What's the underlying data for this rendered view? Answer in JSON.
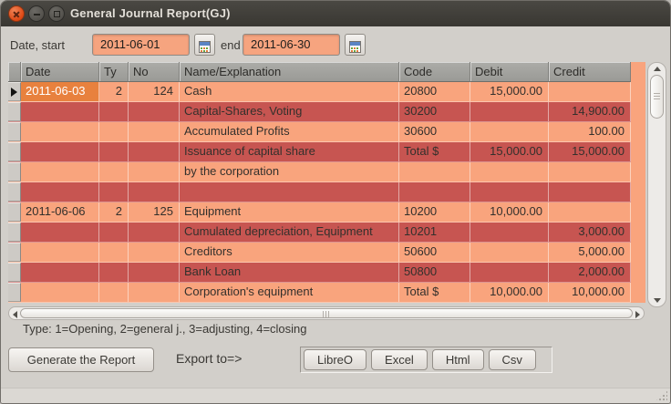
{
  "window": {
    "title": "General Journal Report(GJ)"
  },
  "colors": {
    "titlebar_bg": "#3c3b36",
    "close_button": "#dd4814",
    "entry_bg": "#f6a47f",
    "header_bg": "#acaca8",
    "row_light": "#f9a47d",
    "row_dark": "#c75551",
    "cell_selected": "#e8813e"
  },
  "filters": {
    "start_label": "Date, start",
    "start_value": "2011-06-01",
    "end_label": "end",
    "end_value": "2011-06-30"
  },
  "table": {
    "columns": [
      "Date",
      "Ty",
      "No",
      "Name/Explanation",
      "Code",
      "Debit",
      "Credit"
    ],
    "rows": [
      {
        "selected": true,
        "date": "2011-06-03",
        "ty": "2",
        "no": "124",
        "name": "Cash",
        "code": "20800",
        "debit": "15,000.00",
        "credit": ""
      },
      {
        "date": "",
        "ty": "",
        "no": "",
        "name": "Capital-Shares, Voting",
        "code": "30200",
        "debit": "",
        "credit": "14,900.00"
      },
      {
        "date": "",
        "ty": "",
        "no": "",
        "name": "Accumulated Profits",
        "code": "30600",
        "debit": "",
        "credit": "100.00"
      },
      {
        "date": "",
        "ty": "",
        "no": "",
        "name": "Issuance of capital share",
        "code": "Total $",
        "debit": "15,000.00",
        "credit": "15,000.00"
      },
      {
        "date": "",
        "ty": "",
        "no": "",
        "name": "by the corporation",
        "code": "",
        "debit": "",
        "credit": ""
      },
      {
        "date": "",
        "ty": "",
        "no": "",
        "name": "",
        "code": "",
        "debit": "",
        "credit": ""
      },
      {
        "date": "2011-06-06",
        "ty": "2",
        "no": "125",
        "name": "Equipment",
        "code": "10200",
        "debit": "10,000.00",
        "credit": ""
      },
      {
        "date": "",
        "ty": "",
        "no": "",
        "name": "Cumulated depreciation, Equipment",
        "code": "10201",
        "debit": "",
        "credit": "3,000.00"
      },
      {
        "date": "",
        "ty": "",
        "no": "",
        "name": "Creditors",
        "code": "50600",
        "debit": "",
        "credit": "5,000.00"
      },
      {
        "date": "",
        "ty": "",
        "no": "",
        "name": "Bank Loan",
        "code": "50800",
        "debit": "",
        "credit": "2,000.00"
      },
      {
        "date": "",
        "ty": "",
        "no": "",
        "name": "Corporation's equipment",
        "code": "Total $",
        "debit": "10,000.00",
        "credit": "10,000.00"
      }
    ]
  },
  "hint": "Type: 1=Opening, 2=general j., 3=adjusting, 4=closing",
  "actions": {
    "generate_label": "Generate the Report",
    "export_label": "Export to=>",
    "export_buttons": [
      "LibreO",
      "Excel",
      "Html",
      "Csv"
    ]
  }
}
